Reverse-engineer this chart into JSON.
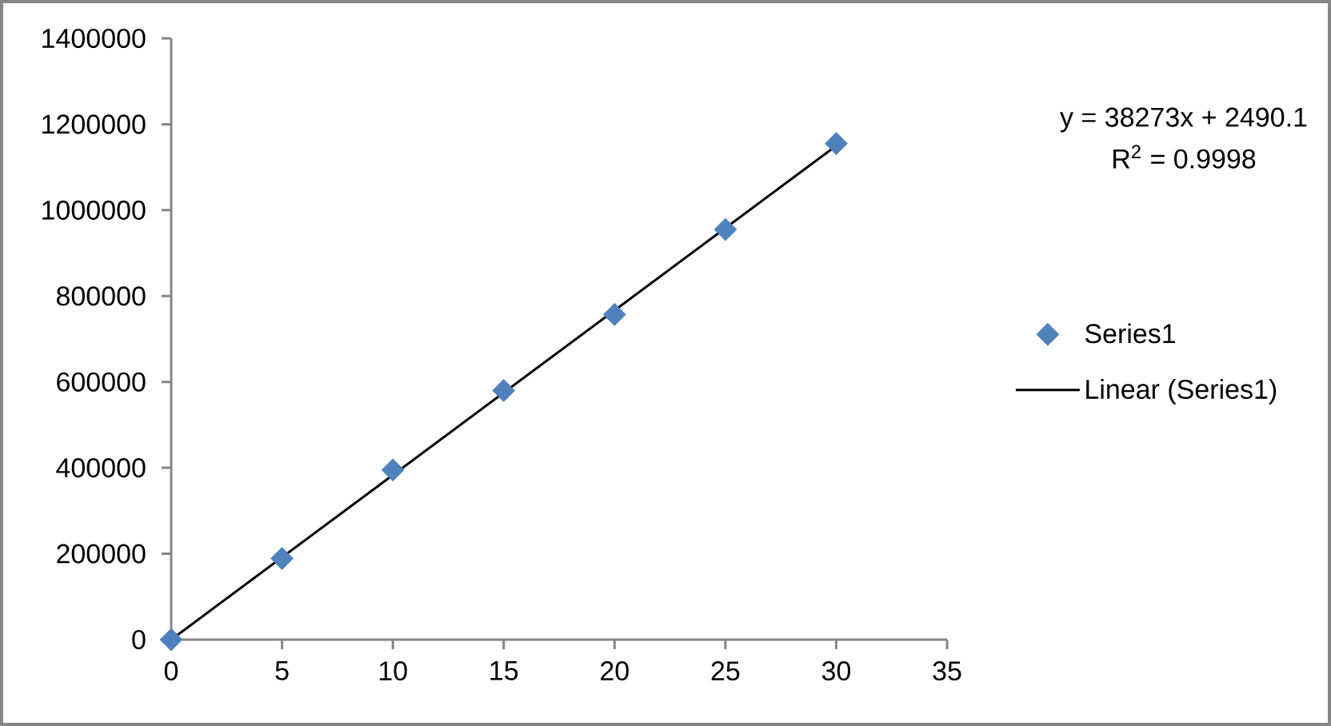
{
  "chart_data": {
    "type": "scatter",
    "x": [
      0,
      5,
      10,
      15,
      20,
      25,
      30
    ],
    "series": [
      {
        "name": "Series1",
        "color": "#4f81bd",
        "values": [
          0,
          189000,
          395000,
          580000,
          757000,
          955000,
          1155000
        ]
      },
      {
        "name": "Linear (Series1)",
        "type": "line",
        "color": "#000000",
        "x": [
          0,
          30
        ],
        "values": [
          0,
          1150000
        ],
        "marker": "none"
      }
    ],
    "marker": "diamond",
    "xlim": [
      0,
      35
    ],
    "ylim": [
      0,
      1400000
    ],
    "xticks": [
      0,
      5,
      10,
      15,
      20,
      25,
      30,
      35
    ],
    "yticks": [
      0,
      200000,
      400000,
      600000,
      800000,
      1000000,
      1200000,
      1400000
    ],
    "legend": "right",
    "annotations": [
      "y = 38273x + 2490.1",
      "R$^{2}$ = 0.9998"
    ]
  }
}
